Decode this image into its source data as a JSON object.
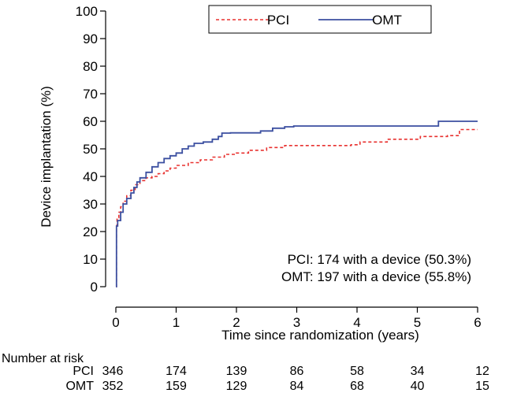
{
  "chart_data": {
    "type": "line",
    "title": "",
    "xlabel": "Time since randomization (years)",
    "ylabel": "Device implantation (%)",
    "xlim": [
      0,
      6
    ],
    "ylim": [
      0,
      100
    ],
    "xticks": [
      0,
      1,
      2,
      3,
      4,
      5,
      6
    ],
    "yticks": [
      0,
      10,
      20,
      30,
      40,
      50,
      60,
      70,
      80,
      90,
      100
    ],
    "step": true,
    "grid": false,
    "legend_position": "top-right",
    "series": [
      {
        "name": "PCI",
        "color": "#e8312f",
        "dash": "dashed",
        "points": [
          [
            0,
            0
          ],
          [
            0.01,
            22
          ],
          [
            0.02,
            25
          ],
          [
            0.05,
            27
          ],
          [
            0.08,
            29
          ],
          [
            0.12,
            31
          ],
          [
            0.18,
            33
          ],
          [
            0.25,
            35
          ],
          [
            0.32,
            37
          ],
          [
            0.4,
            38.5
          ],
          [
            0.5,
            39.5
          ],
          [
            0.6,
            40
          ],
          [
            0.7,
            41
          ],
          [
            0.8,
            42
          ],
          [
            0.9,
            43
          ],
          [
            1.0,
            44
          ],
          [
            1.2,
            45
          ],
          [
            1.4,
            46
          ],
          [
            1.6,
            47
          ],
          [
            1.8,
            48
          ],
          [
            2.0,
            48.5
          ],
          [
            2.2,
            49.5
          ],
          [
            2.5,
            50.5
          ],
          [
            2.8,
            51.2
          ],
          [
            3.0,
            51.2
          ],
          [
            3.5,
            51.2
          ],
          [
            3.9,
            51.5
          ],
          [
            4.05,
            52.5
          ],
          [
            4.5,
            53.5
          ],
          [
            4.95,
            53.5
          ],
          [
            5.05,
            54.5
          ],
          [
            5.5,
            54.8
          ],
          [
            5.65,
            54.8
          ],
          [
            5.7,
            57
          ],
          [
            6.0,
            57
          ]
        ]
      },
      {
        "name": "OMT",
        "color": "#3b4fa0",
        "dash": "solid",
        "points": [
          [
            0,
            0
          ],
          [
            0.01,
            22
          ],
          [
            0.03,
            24
          ],
          [
            0.08,
            27
          ],
          [
            0.12,
            30
          ],
          [
            0.18,
            32
          ],
          [
            0.25,
            34
          ],
          [
            0.3,
            36
          ],
          [
            0.35,
            38
          ],
          [
            0.4,
            39.5
          ],
          [
            0.5,
            41.5
          ],
          [
            0.6,
            43.5
          ],
          [
            0.7,
            45
          ],
          [
            0.8,
            46.5
          ],
          [
            0.9,
            47.5
          ],
          [
            1.0,
            48.5
          ],
          [
            1.1,
            50
          ],
          [
            1.2,
            51
          ],
          [
            1.3,
            52
          ],
          [
            1.45,
            52.5
          ],
          [
            1.6,
            53.5
          ],
          [
            1.7,
            54.5
          ],
          [
            1.76,
            55.7
          ],
          [
            1.9,
            55.8
          ],
          [
            2.2,
            55.8
          ],
          [
            2.4,
            56.5
          ],
          [
            2.6,
            57.5
          ],
          [
            2.8,
            58
          ],
          [
            2.95,
            58.3
          ],
          [
            3.5,
            58.3
          ],
          [
            4.0,
            58.3
          ],
          [
            4.5,
            58.3
          ],
          [
            5.0,
            58.3
          ],
          [
            5.3,
            58.3
          ],
          [
            5.35,
            60
          ],
          [
            6.0,
            60
          ]
        ]
      }
    ],
    "annotations": [
      "PCI: 174 with a device (50.3%)",
      "OMT: 197 with a device (55.8%)"
    ],
    "risk_table": {
      "title": "Number at risk",
      "rows": [
        {
          "label": "PCI",
          "values": [
            "346",
            "174",
            "139",
            "86",
            "58",
            "34",
            "12"
          ]
        },
        {
          "label": "OMT",
          "values": [
            "352",
            "159",
            "129",
            "84",
            "68",
            "40",
            "15"
          ]
        }
      ]
    }
  }
}
